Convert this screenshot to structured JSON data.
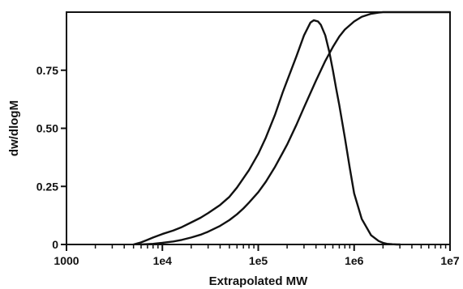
{
  "chart_data": {
    "type": "line",
    "title": "",
    "xlabel": "Extrapolated MW",
    "ylabel": "dw/dlogM",
    "x_scale": "log",
    "xlim": [
      1000,
      10000000
    ],
    "ylim": [
      0,
      1.0
    ],
    "grid": false,
    "legend": "none",
    "x_tick_labels": [
      {
        "value": 1000,
        "label": "1000"
      },
      {
        "value": 10000,
        "label": "1e4"
      },
      {
        "value": 100000,
        "label": "1e5"
      },
      {
        "value": 1000000,
        "label": "1e6"
      },
      {
        "value": 10000000,
        "label": "1e7"
      }
    ],
    "y_tick_labels": [
      {
        "value": 0,
        "label": "0"
      },
      {
        "value": 0.25,
        "label": "0.25"
      },
      {
        "value": 0.5,
        "label": "0.50"
      },
      {
        "value": 0.75,
        "label": "0.75"
      }
    ],
    "series": [
      {
        "color": "#111111",
        "x": [
          5000,
          6000,
          7000,
          8000,
          10000,
          13000,
          16000,
          20000,
          25000,
          30000,
          40000,
          50000,
          60000,
          70000,
          80000,
          100000,
          120000,
          150000,
          180000,
          200000,
          250000,
          300000,
          350000,
          380000,
          420000,
          450000,
          500000,
          550000,
          600000,
          650000,
          700000,
          800000,
          900000,
          1000000,
          1200000,
          1500000,
          1800000,
          2000000,
          2200000,
          2500000,
          2800000,
          3000000
        ],
        "y": [
          0.0,
          0.009,
          0.02,
          0.03,
          0.045,
          0.06,
          0.075,
          0.095,
          0.115,
          0.135,
          0.17,
          0.205,
          0.245,
          0.285,
          0.32,
          0.39,
          0.46,
          0.56,
          0.655,
          0.705,
          0.81,
          0.9,
          0.955,
          0.965,
          0.96,
          0.945,
          0.9,
          0.83,
          0.75,
          0.67,
          0.6,
          0.46,
          0.33,
          0.22,
          0.11,
          0.04,
          0.015,
          0.007,
          0.003,
          0.001,
          0.0,
          0.0
        ]
      },
      {
        "color": "#111111",
        "x": [
          6000,
          8000,
          10000,
          13000,
          16000,
          20000,
          25000,
          30000,
          40000,
          50000,
          60000,
          70000,
          80000,
          100000,
          120000,
          150000,
          180000,
          200000,
          250000,
          300000,
          400000,
          500000,
          600000,
          700000,
          800000,
          1000000,
          1200000,
          1500000,
          1800000,
          2000000,
          2500000,
          3000000,
          5000000,
          10000000
        ],
        "y": [
          0.0,
          0.003,
          0.007,
          0.013,
          0.02,
          0.03,
          0.042,
          0.055,
          0.08,
          0.105,
          0.13,
          0.155,
          0.18,
          0.225,
          0.27,
          0.335,
          0.395,
          0.43,
          0.515,
          0.59,
          0.705,
          0.79,
          0.85,
          0.895,
          0.925,
          0.96,
          0.98,
          0.993,
          0.998,
          1.0,
          1.0,
          1.0,
          1.0,
          1.0
        ]
      }
    ]
  }
}
